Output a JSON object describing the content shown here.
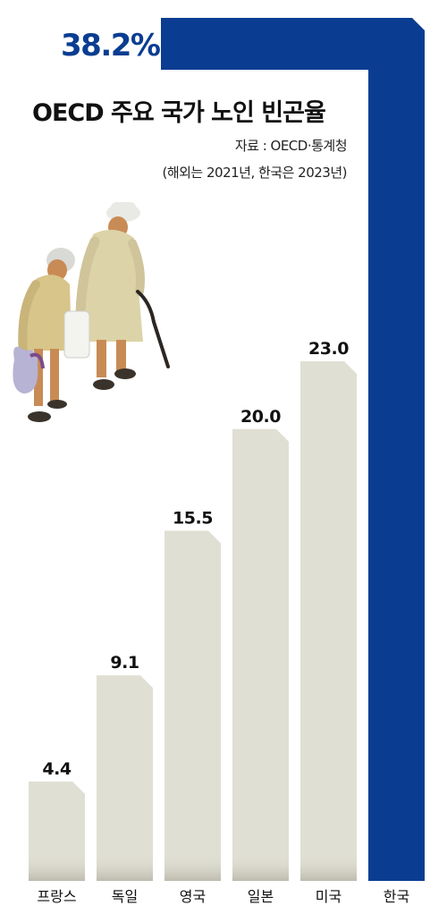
{
  "chart_data": {
    "type": "bar",
    "title": "OECD 주요 국가 노인 빈곤율",
    "source": "자료 : OECD·통계청",
    "note": "(해외는 2021년, 한국은 2023년)",
    "categories": [
      "프랑스",
      "독일",
      "영국",
      "일본",
      "미국",
      "한국"
    ],
    "values": [
      4.4,
      9.1,
      15.5,
      20.0,
      23.0,
      38.2
    ],
    "value_labels": [
      "4.4",
      "9.1",
      "15.5",
      "20.0",
      "23.0",
      "38.2%"
    ],
    "highlight": "한국",
    "ylim": [
      0,
      38.2
    ],
    "grid": false,
    "colors": {
      "bar": "#e0dfd3",
      "highlight": "#0a3d91",
      "label": "#111111",
      "highlight_label": "#0a3d91"
    }
  }
}
